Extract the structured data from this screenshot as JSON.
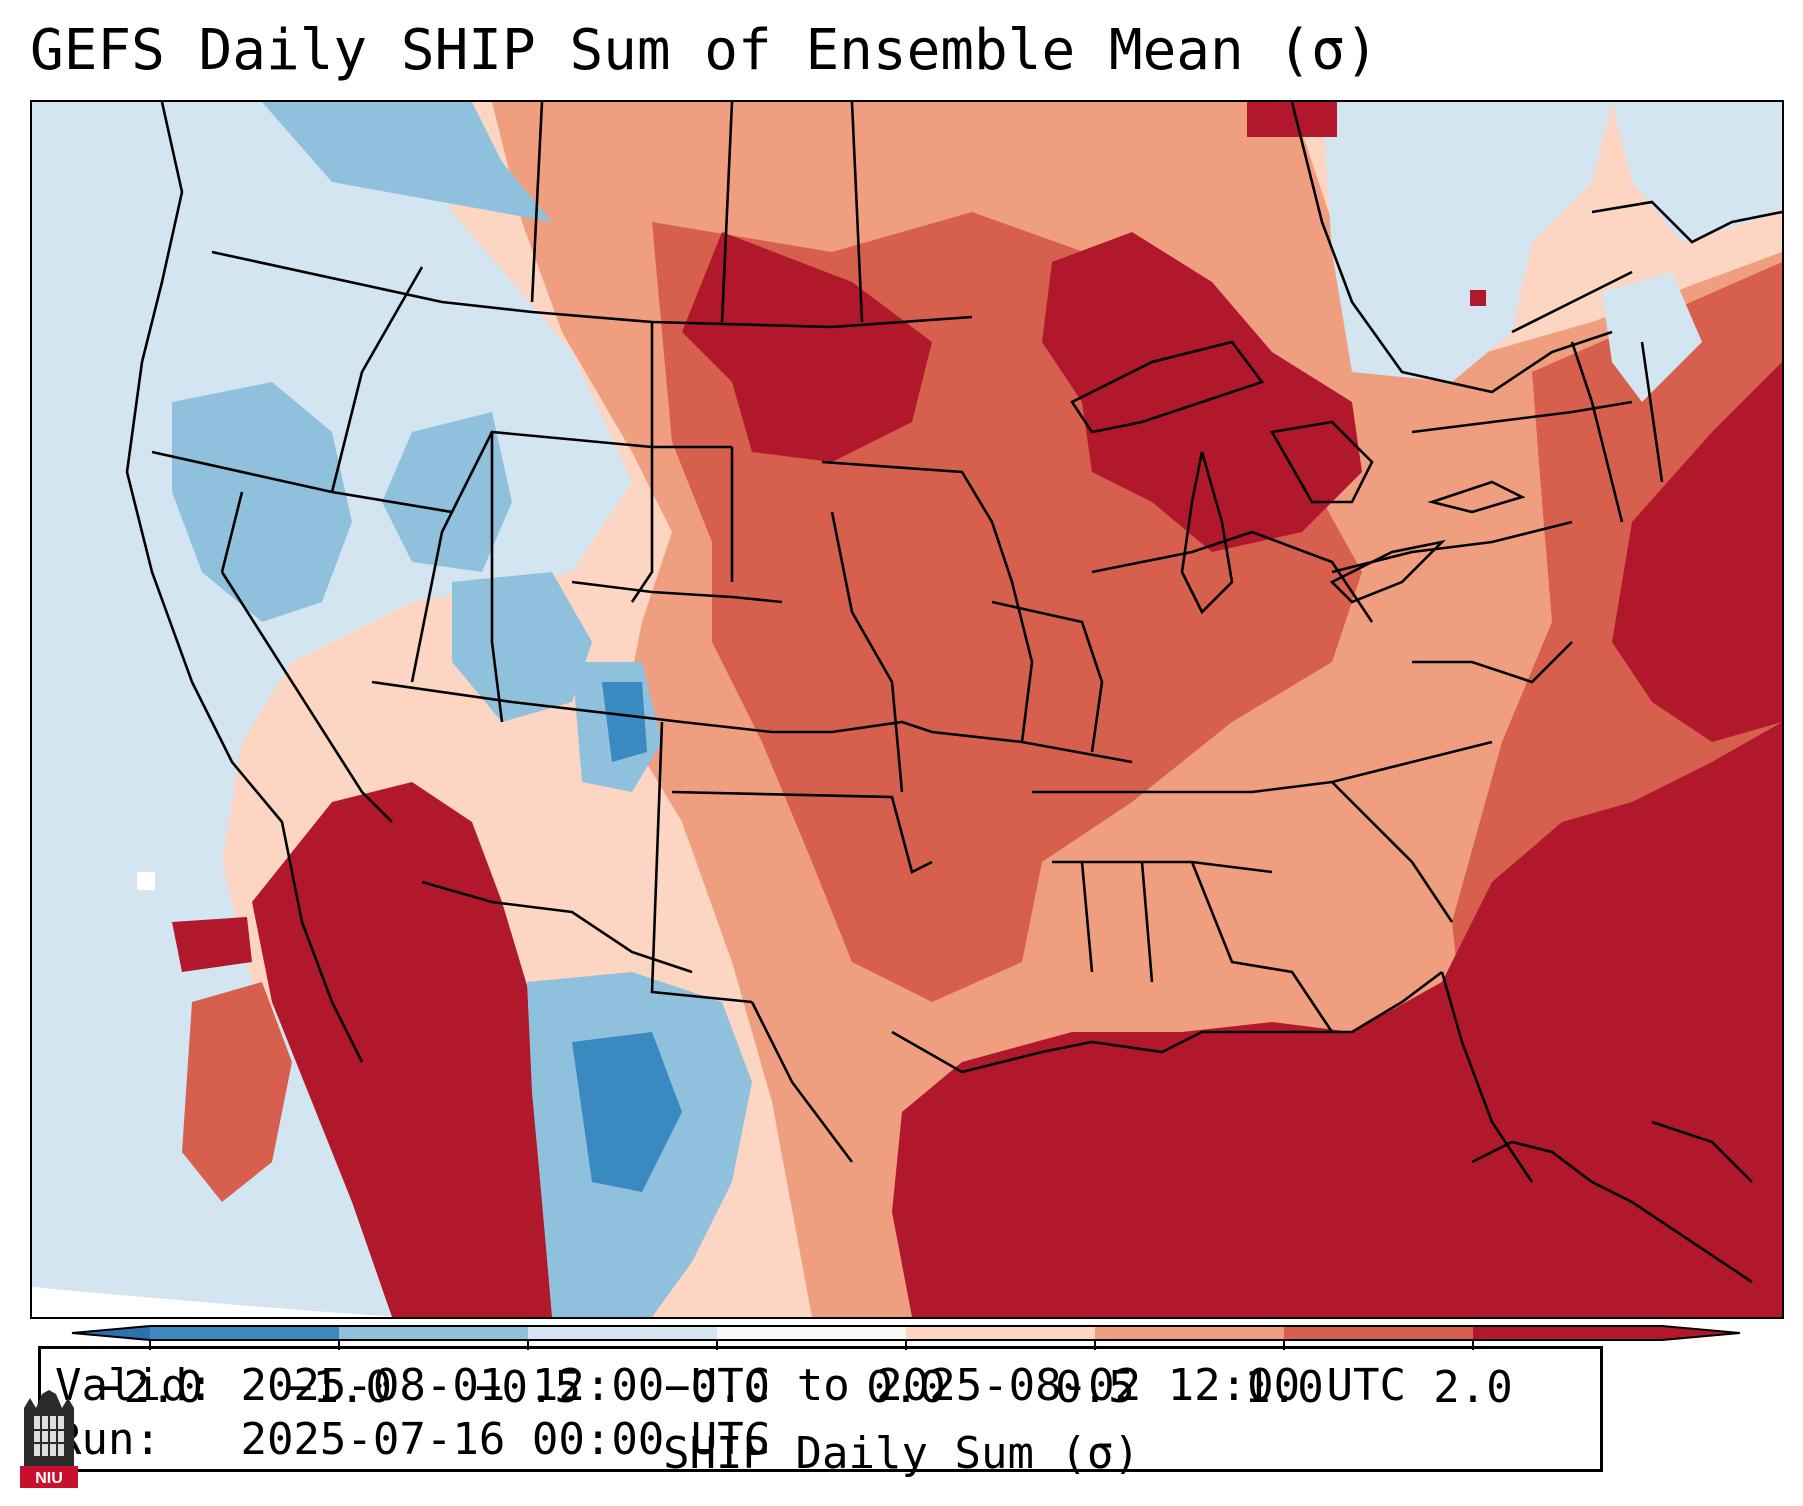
{
  "title": "GEFS Daily SHIP Sum of Ensemble Mean (σ)",
  "info": {
    "valid_label": "Valid:",
    "valid_value": "2025-08-01 12:00 UTC to 2025-08-02 12:00 UTC",
    "run_label": "Run:",
    "run_value": "2025-07-16 00:00 UTC"
  },
  "colorbar": {
    "label": "SHIP Daily Sum (σ)",
    "tick_labels": [
      "−2.0",
      "−1.0",
      "−0.5",
      "−0.0",
      "0.0",
      "0.5",
      "1.0",
      "2.0"
    ],
    "bin_colors": [
      "#3a89c0",
      "#8fc1dd",
      "#d2e5f0",
      "#f7f7f7",
      "#fcd6c2",
      "#ef9f7f",
      "#d6604d",
      "#b2182b"
    ],
    "extend_low_color": "#2c72b0",
    "extend_high_color": "#b2182b"
  },
  "map": {
    "projection": "Lambert conformal (CONUS)",
    "field": "SHIP daily sum standardized anomaly",
    "summary": {
      "dominant_positive": [
        "Gulf of Mexico",
        "Southeast US",
        "Great Lakes",
        "Northern Plains",
        "Desert Southwest / Mexico"
      ],
      "dominant_negative": [
        "Great Basin",
        "Pacific Northwest",
        "Texas/Mexico border"
      ]
    }
  },
  "logo": {
    "text": "NIU"
  }
}
